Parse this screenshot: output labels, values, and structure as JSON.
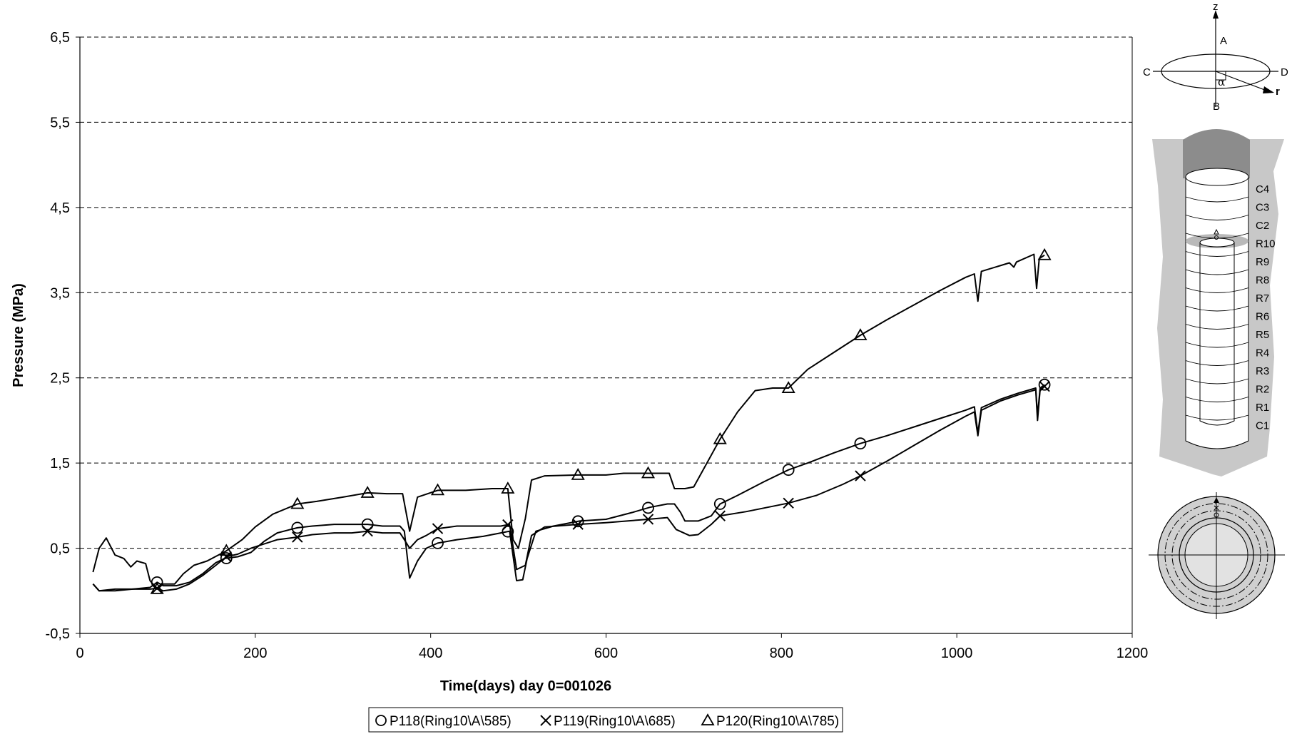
{
  "chart_data": {
    "type": "line",
    "title": "",
    "xlabel": "Time(days)  day 0=001026",
    "ylabel": "Pressure (MPa)",
    "xlim": [
      0,
      1200
    ],
    "ylim": [
      -0.5,
      6.5
    ],
    "x_ticks": [
      "0",
      "200",
      "400",
      "600",
      "800",
      "1000",
      "1200"
    ],
    "y_ticks": [
      "-0,5",
      "0,5",
      "1,5",
      "2,5",
      "3,5",
      "4,5",
      "5,5",
      "6,5"
    ],
    "grid": "horizontal dashed",
    "legend_position": "bottom",
    "series": [
      {
        "name": "P118(Ring10\\A\\585)",
        "marker": "circle",
        "values": [
          [
            15,
            0.08
          ],
          [
            22,
            0.0
          ],
          [
            40,
            0.02
          ],
          [
            60,
            0.02
          ],
          [
            80,
            0.04
          ],
          [
            88,
            0.1
          ],
          [
            95,
            0.06
          ],
          [
            110,
            0.06
          ],
          [
            125,
            0.1
          ],
          [
            140,
            0.2
          ],
          [
            155,
            0.33
          ],
          [
            165,
            0.38
          ],
          [
            180,
            0.4
          ],
          [
            195,
            0.45
          ],
          [
            210,
            0.58
          ],
          [
            225,
            0.68
          ],
          [
            240,
            0.72
          ],
          [
            248,
            0.74
          ],
          [
            265,
            0.76
          ],
          [
            290,
            0.78
          ],
          [
            310,
            0.78
          ],
          [
            328,
            0.78
          ],
          [
            345,
            0.76
          ],
          [
            365,
            0.76
          ],
          [
            370,
            0.7
          ],
          [
            376,
            0.15
          ],
          [
            385,
            0.35
          ],
          [
            395,
            0.5
          ],
          [
            408,
            0.56
          ],
          [
            430,
            0.6
          ],
          [
            460,
            0.64
          ],
          [
            480,
            0.68
          ],
          [
            490,
            0.7
          ],
          [
            498,
            0.12
          ],
          [
            505,
            0.13
          ],
          [
            510,
            0.38
          ],
          [
            520,
            0.7
          ],
          [
            540,
            0.76
          ],
          [
            570,
            0.82
          ],
          [
            600,
            0.84
          ],
          [
            630,
            0.92
          ],
          [
            650,
            0.98
          ],
          [
            670,
            1.02
          ],
          [
            678,
            1.02
          ],
          [
            685,
            0.92
          ],
          [
            690,
            0.82
          ],
          [
            705,
            0.82
          ],
          [
            720,
            0.88
          ],
          [
            730,
            1.02
          ],
          [
            750,
            1.12
          ],
          [
            780,
            1.28
          ],
          [
            808,
            1.42
          ],
          [
            830,
            1.5
          ],
          [
            860,
            1.62
          ],
          [
            890,
            1.73
          ],
          [
            920,
            1.82
          ],
          [
            950,
            1.92
          ],
          [
            980,
            2.02
          ],
          [
            1010,
            2.12
          ],
          [
            1020,
            2.16
          ],
          [
            1024,
            1.85
          ],
          [
            1028,
            2.15
          ],
          [
            1050,
            2.25
          ],
          [
            1070,
            2.32
          ],
          [
            1090,
            2.38
          ],
          [
            1092,
            2.05
          ],
          [
            1095,
            2.38
          ],
          [
            1100,
            2.42
          ]
        ]
      },
      {
        "name": "P119(Ring10\\A\\685)",
        "marker": "x",
        "values": [
          [
            15,
            0.08
          ],
          [
            22,
            0.0
          ],
          [
            40,
            0.0
          ],
          [
            60,
            0.02
          ],
          [
            80,
            0.02
          ],
          [
            88,
            0.03
          ],
          [
            95,
            0.0
          ],
          [
            110,
            0.02
          ],
          [
            125,
            0.08
          ],
          [
            140,
            0.18
          ],
          [
            155,
            0.3
          ],
          [
            167,
            0.4
          ],
          [
            180,
            0.43
          ],
          [
            195,
            0.5
          ],
          [
            210,
            0.55
          ],
          [
            225,
            0.6
          ],
          [
            248,
            0.63
          ],
          [
            265,
            0.66
          ],
          [
            290,
            0.68
          ],
          [
            310,
            0.68
          ],
          [
            328,
            0.7
          ],
          [
            345,
            0.68
          ],
          [
            365,
            0.68
          ],
          [
            370,
            0.6
          ],
          [
            376,
            0.5
          ],
          [
            385,
            0.6
          ],
          [
            395,
            0.65
          ],
          [
            408,
            0.73
          ],
          [
            430,
            0.76
          ],
          [
            460,
            0.76
          ],
          [
            480,
            0.76
          ],
          [
            490,
            0.78
          ],
          [
            498,
            0.25
          ],
          [
            508,
            0.3
          ],
          [
            515,
            0.65
          ],
          [
            530,
            0.75
          ],
          [
            568,
            0.78
          ],
          [
            600,
            0.8
          ],
          [
            648,
            0.84
          ],
          [
            670,
            0.86
          ],
          [
            680,
            0.72
          ],
          [
            695,
            0.65
          ],
          [
            705,
            0.66
          ],
          [
            720,
            0.78
          ],
          [
            730,
            0.88
          ],
          [
            760,
            0.93
          ],
          [
            808,
            1.03
          ],
          [
            840,
            1.12
          ],
          [
            870,
            1.25
          ],
          [
            890,
            1.35
          ],
          [
            920,
            1.52
          ],
          [
            950,
            1.7
          ],
          [
            980,
            1.88
          ],
          [
            1010,
            2.05
          ],
          [
            1020,
            2.1
          ],
          [
            1024,
            1.82
          ],
          [
            1028,
            2.12
          ],
          [
            1050,
            2.23
          ],
          [
            1070,
            2.3
          ],
          [
            1090,
            2.36
          ],
          [
            1092,
            2.0
          ],
          [
            1095,
            2.36
          ],
          [
            1100,
            2.4
          ]
        ]
      },
      {
        "name": "P120(Ring10\\A\\785)",
        "marker": "triangle",
        "values": [
          [
            15,
            0.22
          ],
          [
            22,
            0.5
          ],
          [
            30,
            0.62
          ],
          [
            40,
            0.42
          ],
          [
            50,
            0.38
          ],
          [
            58,
            0.28
          ],
          [
            65,
            0.35
          ],
          [
            75,
            0.32
          ],
          [
            80,
            0.12
          ],
          [
            88,
            0.02
          ],
          [
            95,
            0.08
          ],
          [
            108,
            0.08
          ],
          [
            118,
            0.2
          ],
          [
            130,
            0.3
          ],
          [
            145,
            0.35
          ],
          [
            167,
            0.47
          ],
          [
            185,
            0.6
          ],
          [
            200,
            0.75
          ],
          [
            220,
            0.9
          ],
          [
            248,
            1.02
          ],
          [
            270,
            1.05
          ],
          [
            300,
            1.1
          ],
          [
            328,
            1.15
          ],
          [
            350,
            1.14
          ],
          [
            368,
            1.14
          ],
          [
            376,
            0.7
          ],
          [
            385,
            1.1
          ],
          [
            408,
            1.18
          ],
          [
            440,
            1.18
          ],
          [
            470,
            1.2
          ],
          [
            488,
            1.2
          ],
          [
            494,
            0.6
          ],
          [
            500,
            0.5
          ],
          [
            508,
            0.85
          ],
          [
            515,
            1.3
          ],
          [
            530,
            1.35
          ],
          [
            568,
            1.36
          ],
          [
            600,
            1.36
          ],
          [
            620,
            1.38
          ],
          [
            650,
            1.38
          ],
          [
            672,
            1.38
          ],
          [
            678,
            1.2
          ],
          [
            690,
            1.2
          ],
          [
            700,
            1.22
          ],
          [
            715,
            1.5
          ],
          [
            730,
            1.78
          ],
          [
            750,
            2.1
          ],
          [
            770,
            2.35
          ],
          [
            790,
            2.38
          ],
          [
            808,
            2.38
          ],
          [
            830,
            2.6
          ],
          [
            860,
            2.8
          ],
          [
            890,
            3.0
          ],
          [
            920,
            3.18
          ],
          [
            950,
            3.35
          ],
          [
            980,
            3.52
          ],
          [
            1010,
            3.68
          ],
          [
            1020,
            3.72
          ],
          [
            1024,
            3.4
          ],
          [
            1028,
            3.75
          ],
          [
            1060,
            3.85
          ],
          [
            1065,
            3.8
          ],
          [
            1068,
            3.86
          ],
          [
            1088,
            3.95
          ],
          [
            1091,
            3.55
          ],
          [
            1094,
            3.9
          ],
          [
            1100,
            3.94
          ]
        ]
      }
    ]
  },
  "diagram": {
    "axes_labels": {
      "z": "z",
      "a": "A",
      "b": "B",
      "c": "C",
      "d": "D",
      "r": "r",
      "alpha": "α"
    },
    "rings": [
      "C4",
      "C3",
      "C2",
      "R10",
      "R9",
      "R8",
      "R7",
      "R6",
      "R5",
      "R4",
      "R3",
      "R2",
      "R1",
      "C1"
    ]
  }
}
